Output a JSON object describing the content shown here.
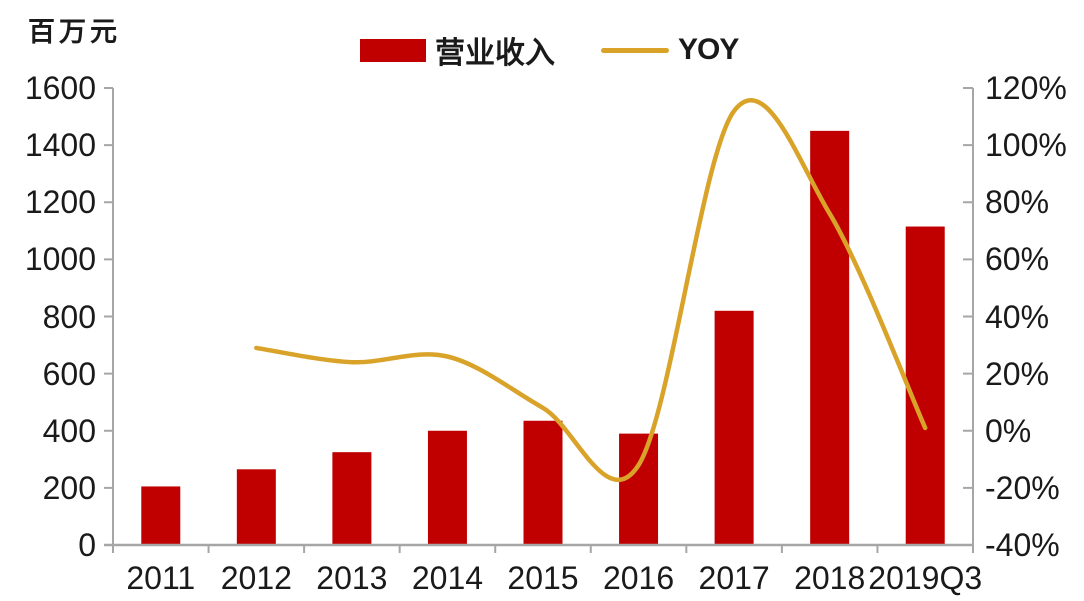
{
  "unit_label": "百万元",
  "legend": {
    "bar_label": "营业收入",
    "line_label": "YOY"
  },
  "colors": {
    "bar": "#c00000",
    "line": "#d9a32a",
    "axis": "#a6a6a6",
    "text": "#1a1a1a",
    "background": "#ffffff"
  },
  "chart_data": {
    "type": "bar",
    "subtype": "bar+line combo",
    "title": "",
    "categories": [
      "2011",
      "2012",
      "2013",
      "2014",
      "2015",
      "2016",
      "2017",
      "2018",
      "2019Q3"
    ],
    "series": [
      {
        "name": "营业收入",
        "type": "bar",
        "axis": "left",
        "unit": "百万元",
        "color": "#c00000",
        "values": [
          205,
          265,
          325,
          400,
          435,
          390,
          820,
          1450,
          1115
        ]
      },
      {
        "name": "YOY",
        "type": "line",
        "axis": "right",
        "unit": "%",
        "color": "#d9a32a",
        "smooth": true,
        "values": [
          null,
          29,
          24,
          26,
          8,
          -12,
          112,
          76,
          1
        ]
      }
    ],
    "left_axis": {
      "label": "百万元",
      "min": 0,
      "max": 1600,
      "step": 200,
      "tick_labels": [
        "0",
        "200",
        "400",
        "600",
        "800",
        "1000",
        "1200",
        "1400",
        "1600"
      ]
    },
    "right_axis": {
      "label": "YOY %",
      "min": -40,
      "max": 120,
      "step": 20,
      "tick_labels": [
        "-40%",
        "-20%",
        "0%",
        "20%",
        "40%",
        "60%",
        "80%",
        "100%",
        "120%"
      ]
    },
    "grid": false,
    "legend_position": "top-center"
  }
}
